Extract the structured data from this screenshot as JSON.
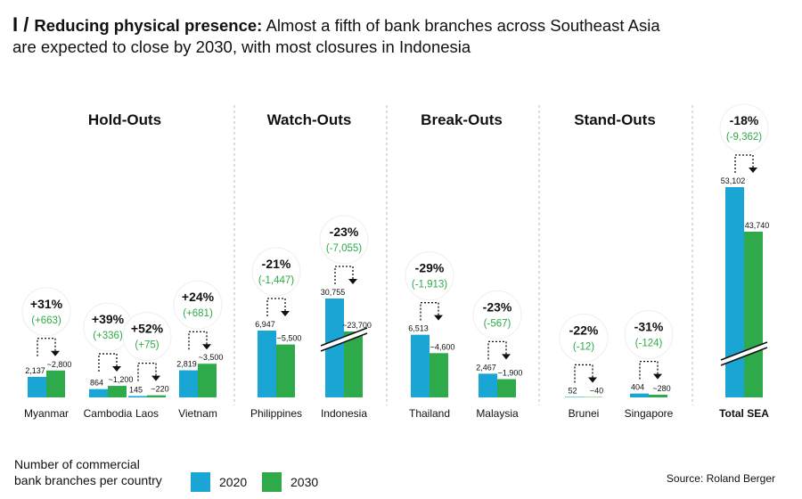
{
  "header": {
    "slash": "I /",
    "title_bold": "Reducing physical presence:",
    "title_rest": " Almost a fifth of bank branches across Southeast Asia",
    "title_line2": "are expected to close by 2030, with most closures in Indonesia"
  },
  "legend": {
    "caption_line1": "Number of commercial",
    "caption_line2": "bank branches per country",
    "items": [
      {
        "label": "2020",
        "color": "#1aa6d4"
      },
      {
        "label": "2030",
        "color": "#2eaa4a"
      }
    ]
  },
  "source": "Source: Roland Berger",
  "chart_data": {
    "type": "bar",
    "groups": [
      "Hold-Outs",
      "Watch-Outs",
      "Break-Outs",
      "Stand-Outs"
    ],
    "series": [
      {
        "name": "2020",
        "color": "#1aa6d4"
      },
      {
        "name": "2030",
        "color": "#2eaa4a"
      }
    ],
    "countries": [
      {
        "name": "Myanmar",
        "group": "Hold-Outs",
        "v2020": 2137,
        "v2030": 2800,
        "label2020": "2,137",
        "label2030": "~2,800",
        "pct": "+31%",
        "abs": "(+663)"
      },
      {
        "name": "Cambodia",
        "group": "Hold-Outs",
        "v2020": 864,
        "v2030": 1200,
        "label2020": "864",
        "label2030": "~1,200",
        "pct": "+39%",
        "abs": "(+336)"
      },
      {
        "name": "Laos",
        "group": "Hold-Outs",
        "v2020": 145,
        "v2030": 220,
        "label2020": "145",
        "label2030": "~220",
        "pct": "+52%",
        "abs": "(+75)"
      },
      {
        "name": "Vietnam",
        "group": "Hold-Outs",
        "v2020": 2819,
        "v2030": 3500,
        "label2020": "2,819",
        "label2030": "~3,500",
        "pct": "+24%",
        "abs": "(+681)"
      },
      {
        "name": "Philippines",
        "group": "Watch-Outs",
        "v2020": 6947,
        "v2030": 5500,
        "label2020": "6,947",
        "label2030": "~5,500",
        "pct": "-21%",
        "abs": "(-1,447)"
      },
      {
        "name": "Indonesia",
        "group": "Watch-Outs",
        "v2020": 30755,
        "v2030": 23700,
        "label2020": "30,755",
        "label2030": "~23,700",
        "pct": "-23%",
        "abs": "(-7,055)",
        "axis_break": true
      },
      {
        "name": "Thailand",
        "group": "Break-Outs",
        "v2020": 6513,
        "v2030": 4600,
        "label2020": "6,513",
        "label2030": "~4,600",
        "pct": "-29%",
        "abs": "(-1,913)"
      },
      {
        "name": "Malaysia",
        "group": "Break-Outs",
        "v2020": 2467,
        "v2030": 1900,
        "label2020": "2,467",
        "label2030": "~1,900",
        "pct": "-23%",
        "abs": "(-567)"
      },
      {
        "name": "Brunei",
        "group": "Stand-Outs",
        "v2020": 52,
        "v2030": 40,
        "label2020": "52",
        "label2030": "~40",
        "pct": "-22%",
        "abs": "(-12)"
      },
      {
        "name": "Singapore",
        "group": "Stand-Outs",
        "v2020": 404,
        "v2030": 280,
        "label2020": "404",
        "label2030": "~280",
        "pct": "-31%",
        "abs": "(-124)"
      },
      {
        "name": "Total SEA",
        "group": "",
        "v2020": 53102,
        "v2030": 43740,
        "label2020": "53,102",
        "label2030": "43,740",
        "pct": "-18%",
        "abs": "(-9,362)",
        "axis_break": true,
        "total": true
      }
    ]
  }
}
